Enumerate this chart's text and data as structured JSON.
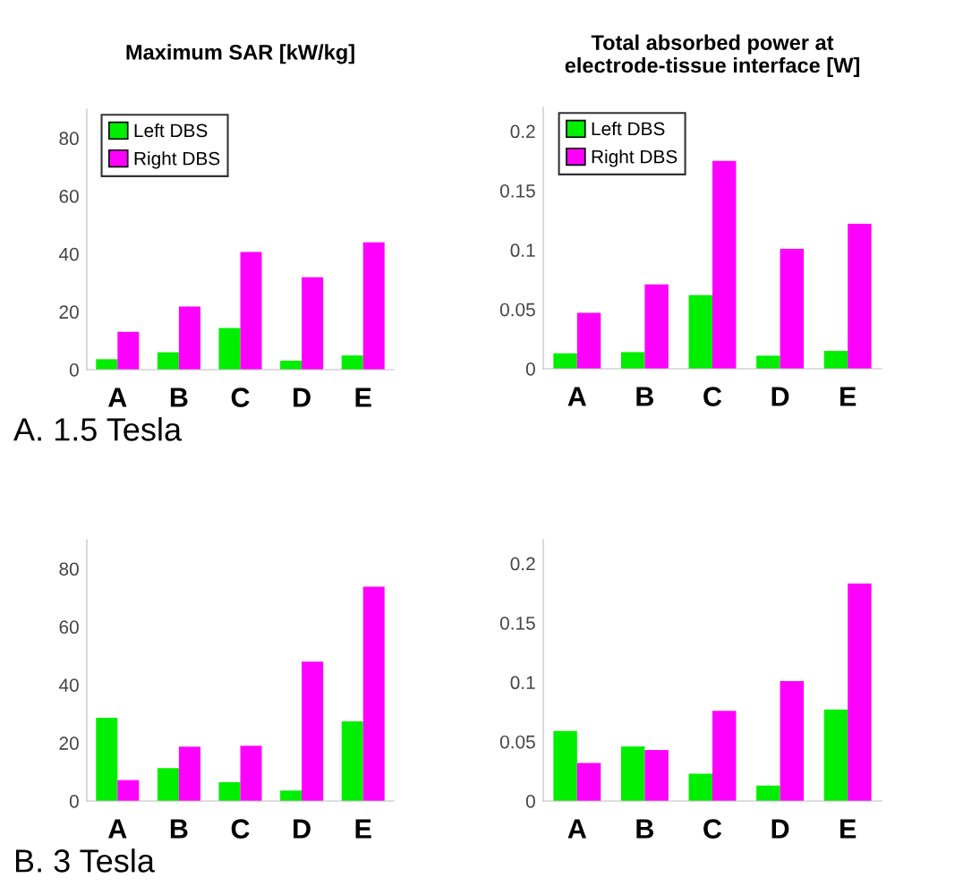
{
  "chart_data": [
    {
      "type": "bar",
      "title": "Maximum SAR [kW/kg]",
      "categories": [
        "A",
        "B",
        "C",
        "D",
        "E"
      ],
      "series": [
        {
          "name": "Left DBS",
          "color": "#00ee00",
          "values": [
            3.6,
            6.0,
            14.4,
            3.1,
            4.9
          ]
        },
        {
          "name": "Right DBS",
          "color": "#ff00ff",
          "values": [
            13.1,
            21.8,
            40.7,
            31.9,
            44.0
          ]
        }
      ],
      "ylim": [
        0,
        90
      ],
      "yticks": [
        0,
        20,
        40,
        60,
        80
      ],
      "grid": false,
      "legend": "top left",
      "annotations": [
        "A. 1.5 Tesla"
      ]
    },
    {
      "type": "bar",
      "title": "Total absorbed power at\nelectrode-tissue interface [W]",
      "categories": [
        "A",
        "B",
        "C",
        "D",
        "E"
      ],
      "series": [
        {
          "name": "Left DBS",
          "color": "#00ee00",
          "values": [
            0.013,
            0.014,
            0.062,
            0.011,
            0.015
          ]
        },
        {
          "name": "Right DBS",
          "color": "#ff00ff",
          "values": [
            0.047,
            0.071,
            0.175,
            0.101,
            0.122
          ]
        }
      ],
      "ylim": [
        0,
        0.22
      ],
      "yticks": [
        0,
        0.05,
        0.1,
        0.15,
        0.2
      ],
      "grid": false,
      "legend": "top left"
    },
    {
      "type": "bar",
      "categories": [
        "A",
        "B",
        "C",
        "D",
        "E"
      ],
      "series": [
        {
          "color": "#00ee00",
          "values": [
            28.7,
            11.3,
            6.5,
            3.6,
            27.4
          ]
        },
        {
          "color": "#ff00ff",
          "values": [
            7.2,
            18.7,
            19.0,
            48.0,
            73.8
          ]
        }
      ],
      "ylim": [
        0,
        90
      ],
      "yticks": [
        0,
        20,
        40,
        60,
        80
      ],
      "grid": false,
      "annotations": [
        "B. 3 Tesla"
      ]
    },
    {
      "type": "bar",
      "categories": [
        "A",
        "B",
        "C",
        "D",
        "E"
      ],
      "series": [
        {
          "color": "#00ee00",
          "values": [
            0.059,
            0.046,
            0.023,
            0.013,
            0.077
          ]
        },
        {
          "color": "#ff00ff",
          "values": [
            0.032,
            0.043,
            0.076,
            0.101,
            0.183
          ]
        }
      ],
      "ylim": [
        0,
        0.22
      ],
      "yticks": [
        0,
        0.05,
        0.1,
        0.15,
        0.2
      ],
      "grid": false
    }
  ]
}
